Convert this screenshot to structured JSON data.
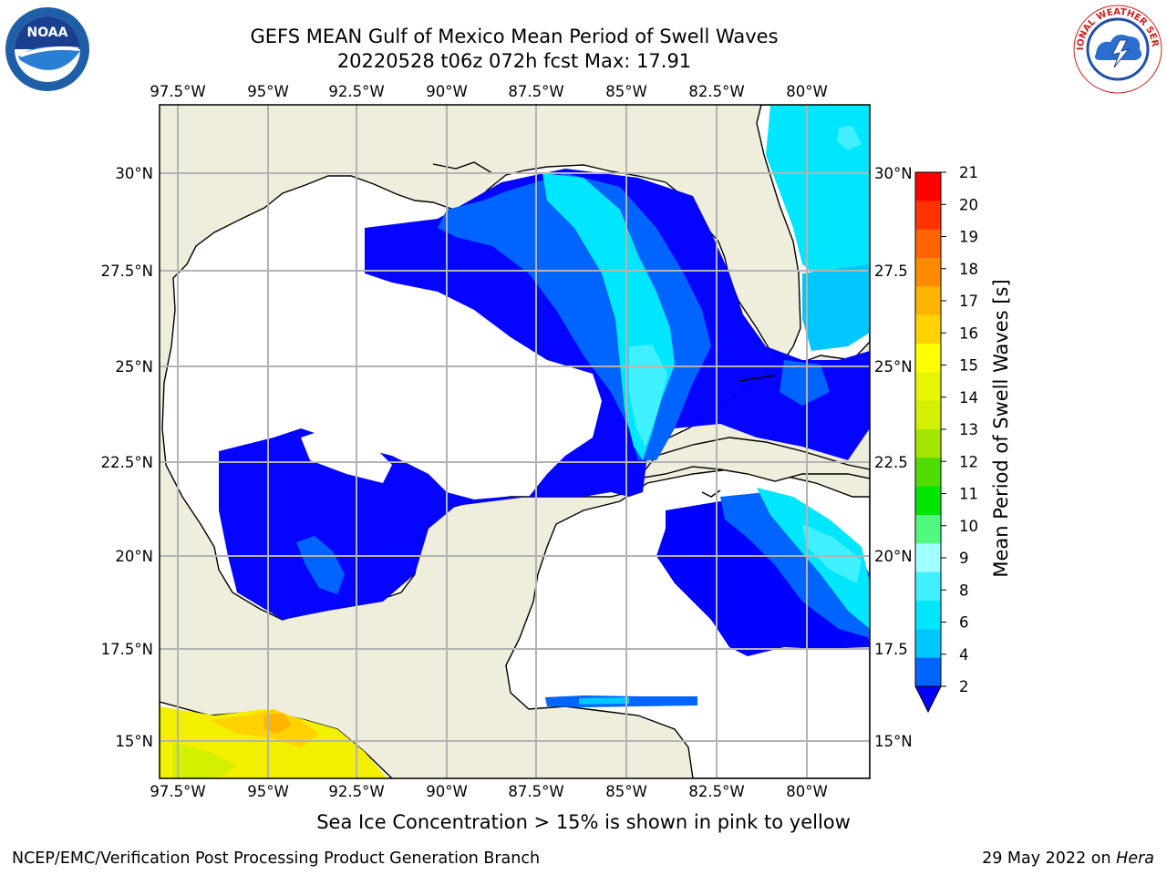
{
  "title": {
    "line1": "GEFS MEAN Gulf of Mexico Mean Period of Swell Waves",
    "line2": "20220528 t06z 072h fcst   Max: 17.91"
  },
  "map": {
    "lon_labels": [
      "97.5°W",
      "95°W",
      "92.5°W",
      "90°W",
      "87.5°W",
      "85°W",
      "82.5°W",
      "80°W"
    ],
    "lat_labels_left": [
      "30°N",
      "27.5°N",
      "25°N",
      "22.5°N",
      "20°N",
      "17.5°N",
      "15°N"
    ],
    "lat_labels_right": [
      "30°N",
      "27.5",
      "25°N",
      "22.5",
      "20°N",
      "17.5",
      "15°N"
    ],
    "land_color": "#efeedc",
    "ocean_color": "#ffffff",
    "grid_color": "#b3b3b3"
  },
  "colorbar": {
    "label": "Mean Period of Swell Waves [s]",
    "ticks": [
      "2",
      "4",
      "6",
      "8",
      "9",
      "10",
      "11",
      "12",
      "13",
      "14",
      "15",
      "16",
      "17",
      "18",
      "19",
      "20",
      "21"
    ],
    "colors": [
      "#0064ff",
      "#00c8ff",
      "#00e6ff",
      "#40f0ff",
      "#a0ffff",
      "#50fa80",
      "#00e600",
      "#50dc00",
      "#a0e600",
      "#d2f000",
      "#e6f500",
      "#ffff00",
      "#ffd200",
      "#ffb400",
      "#ff8c00",
      "#ff6400",
      "#ff3200",
      "#ff0000"
    ],
    "under_color": "#0000ff"
  },
  "note": "Sea Ice Concentration > 15% is shown in pink to yellow",
  "footer": {
    "left": "NCEP/EMC/Verification Post Processing Product Generation Branch",
    "right_prefix": "29 May 2022 on ",
    "right_host": "Hera"
  },
  "logos": {
    "noaa": "NOAA",
    "nws": "NATIONAL WEATHER SERVICE"
  }
}
